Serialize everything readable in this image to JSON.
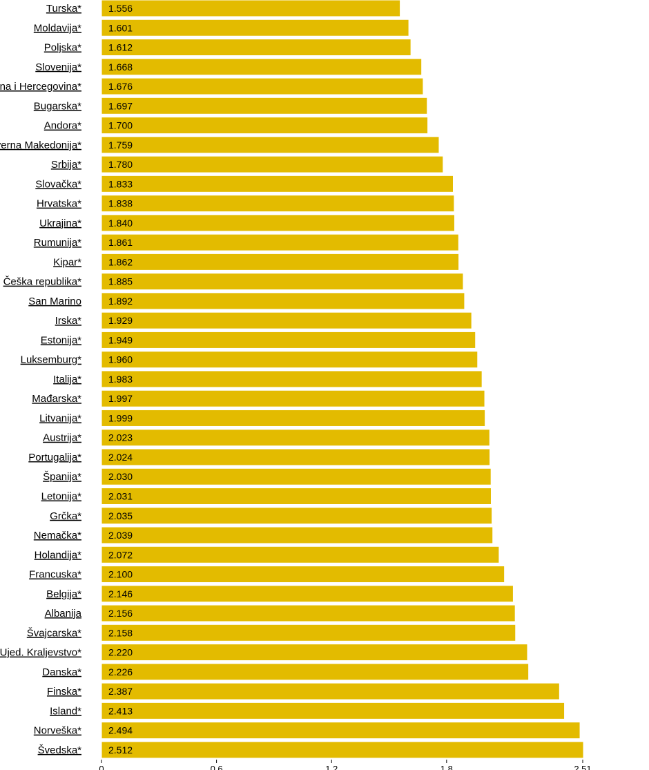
{
  "chart_data": {
    "type": "bar",
    "orientation": "horizontal",
    "categories": [
      "Turska*",
      "Moldavija*",
      "Poljska*",
      "Slovenija*",
      "Bosna i Hercegovina*",
      "Bugarska*",
      "Andora*",
      "Severna Makedonija*",
      "Srbija*",
      "Slovačka*",
      "Hrvatska*",
      "Ukrajina*",
      "Rumunija*",
      "Kipar*",
      "Češka republika*",
      "San Marino ",
      "Irska*",
      "Estonija*",
      "Luksemburg*",
      "Italija*",
      "Mađarska*",
      "Litvanija*",
      "Austrija*",
      "Portugalija*",
      "Španija*",
      "Letonija*",
      "Grčka*",
      "Nemačka*",
      "Holandija*",
      "Francuska*",
      "Belgija*",
      "Albanija ",
      "Švajcarska*",
      "Ujed. Kraljevstvo*",
      "Danska*",
      "Finska*",
      "Island*",
      "Norveška*",
      "Švedska*"
    ],
    "values": [
      1.556,
      1.601,
      1.612,
      1.668,
      1.676,
      1.697,
      1.7,
      1.759,
      1.78,
      1.833,
      1.838,
      1.84,
      1.861,
      1.862,
      1.885,
      1.892,
      1.929,
      1.949,
      1.96,
      1.983,
      1.997,
      1.999,
      2.023,
      2.024,
      2.03,
      2.031,
      2.035,
      2.039,
      2.072,
      2.1,
      2.146,
      2.156,
      2.158,
      2.22,
      2.226,
      2.387,
      2.413,
      2.494,
      2.512
    ],
    "value_labels": [
      "1.556",
      "1.601",
      "1.612",
      "1.668",
      "1.676",
      "1.697",
      "1.700",
      "1.759",
      "1.780",
      "1.833",
      "1.838",
      "1.840",
      "1.861",
      "1.862",
      "1.885",
      "1.892",
      "1.929",
      "1.949",
      "1.960",
      "1.983",
      "1.997",
      "1.999",
      "2.023",
      "2.024",
      "2.030",
      "2.031",
      "2.035",
      "2.039",
      "2.072",
      "2.100",
      "2.146",
      "2.156",
      "2.158",
      "2.220",
      "2.226",
      "2.387",
      "2.413",
      "2.494",
      "2.512"
    ],
    "xlim": [
      0,
      2.51
    ],
    "ticks": [
      0,
      0.6,
      1.2,
      1.8,
      2.51
    ],
    "tick_labels": [
      "0",
      "0.6",
      "1.2",
      "1.8",
      "2.51"
    ],
    "bar_color": "#e3bb00",
    "title": "",
    "xlabel": "",
    "ylabel": ""
  }
}
